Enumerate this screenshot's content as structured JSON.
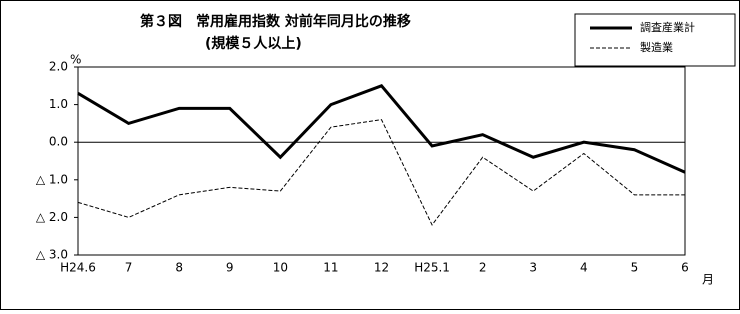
{
  "chart_data": {
    "type": "line",
    "title": "第３図　常用雇用指数 対前年同月比の推移",
    "subtitle": "(規模５人以上)",
    "y_unit": "%",
    "x_unit": "月",
    "categories": [
      "H24.6",
      "7",
      "8",
      "9",
      "10",
      "11",
      "12",
      "H25.1",
      "2",
      "3",
      "4",
      "5",
      "6"
    ],
    "series": [
      {
        "name": "調査産業計",
        "color": "#000000",
        "line_style": "solid",
        "values": [
          1.3,
          0.5,
          0.9,
          0.9,
          -0.4,
          1.0,
          1.5,
          -0.1,
          0.2,
          -0.4,
          0.0,
          -0.2,
          -0.8
        ]
      },
      {
        "name": "製造業",
        "color": "#000000",
        "line_style": "dashed",
        "values": [
          -1.6,
          -2.0,
          -1.4,
          -1.2,
          -1.3,
          0.4,
          0.6,
          -2.2,
          -0.4,
          -1.3,
          -0.3,
          -1.4,
          -1.4
        ]
      }
    ],
    "ylim": [
      -3,
      2
    ],
    "yticks": [
      {
        "value": 2,
        "label": "2.0"
      },
      {
        "value": 1,
        "label": "1.0"
      },
      {
        "value": 0,
        "label": "0.0"
      },
      {
        "value": -1,
        "label": "△ 1.0"
      },
      {
        "value": -2,
        "label": "△ 2.0"
      },
      {
        "value": -3,
        "label": "△ 3.0"
      }
    ],
    "zero_line": true,
    "legend": "top-right"
  }
}
